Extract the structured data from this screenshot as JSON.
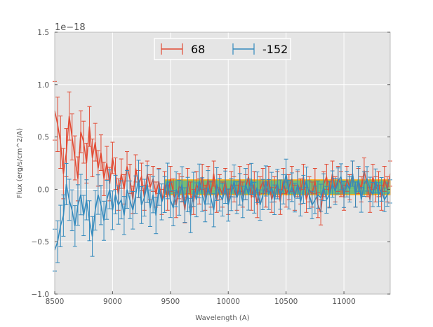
{
  "chart_data": {
    "type": "line",
    "title": "",
    "xlabel": "Wavelength (A)",
    "ylabel": "Flux (erg/s/cm^2/A)",
    "offset_label": "1e−18",
    "xlim": [
      8500,
      11400
    ],
    "ylim": [
      -1.0,
      1.5
    ],
    "x_ticks": [
      8500,
      9000,
      9500,
      10000,
      10500,
      11000
    ],
    "x_tick_labels": [
      "8500",
      "9000",
      "9500",
      "10000",
      "10500",
      "11000"
    ],
    "y_ticks": [
      -1.0,
      -0.5,
      0.0,
      0.5,
      1.0,
      1.5
    ],
    "y_tick_labels": [
      "−1.0",
      "−0.5",
      "0.0",
      "0.5",
      "1.0",
      "1.5"
    ],
    "grid": true,
    "background": "#e5e5e5",
    "legend": {
      "placement": "upper-center",
      "columns": 2
    },
    "band": {
      "x": [
        9450,
        11400
      ],
      "y": [
        -0.05,
        0.09
      ],
      "color": "#4caf50",
      "edge_color": "#ffa500"
    },
    "series": [
      {
        "name": "68",
        "color": "#e24a33",
        "x": [
          8500,
          8525,
          8550,
          8575,
          8600,
          8625,
          8650,
          8675,
          8700,
          8725,
          8750,
          8775,
          8800,
          8825,
          8850,
          8875,
          8900,
          8925,
          8950,
          8975,
          9000,
          9025,
          9050,
          9075,
          9100,
          9125,
          9150,
          9175,
          9200,
          9225,
          9250,
          9275,
          9300,
          9325,
          9350,
          9375,
          9400,
          9425,
          9450,
          9475,
          9500,
          9525,
          9550,
          9575,
          9600,
          9625,
          9650,
          9675,
          9700,
          9725,
          9750,
          9775,
          9800,
          9825,
          9850,
          9875,
          9900,
          9925,
          9950,
          9975,
          10000,
          10025,
          10050,
          10075,
          10100,
          10125,
          10150,
          10175,
          10200,
          10225,
          10250,
          10275,
          10300,
          10325,
          10350,
          10375,
          10400,
          10425,
          10450,
          10475,
          10500,
          10525,
          10550,
          10575,
          10600,
          10625,
          10650,
          10675,
          10700,
          10725,
          10750,
          10775,
          10800,
          10825,
          10850,
          10875,
          10900,
          10925,
          10950,
          10975,
          11000,
          11025,
          11050,
          11075,
          11100,
          11125,
          11150,
          11175,
          11200,
          11225,
          11250,
          11275,
          11300,
          11325,
          11350,
          11375,
          11400
        ],
        "y": [
          0.75,
          0.62,
          0.45,
          0.15,
          0.35,
          0.7,
          0.5,
          0.3,
          0.1,
          0.55,
          0.45,
          0.25,
          0.6,
          0.3,
          0.45,
          0.2,
          0.35,
          0.1,
          0.25,
          0.05,
          0.3,
          0.15,
          -0.05,
          0.15,
          0.0,
          0.22,
          0.1,
          -0.1,
          0.2,
          0.05,
          0.12,
          -0.08,
          0.15,
          0.02,
          0.1,
          -0.05,
          0.08,
          -0.12,
          0.05,
          -0.08,
          0.1,
          -0.02,
          -0.15,
          0.03,
          0.0,
          -0.2,
          0.08,
          -0.05,
          -0.12,
          0.05,
          -0.02,
          0.12,
          -0.08,
          0.1,
          -0.05,
          0.15,
          -0.1,
          0.02,
          -0.05,
          0.08,
          -0.12,
          0.05,
          0.0,
          -0.08,
          0.1,
          -0.05,
          0.02,
          0.12,
          -0.08,
          0.05,
          -0.15,
          0.0,
          0.08,
          -0.05,
          0.1,
          -0.1,
          0.0,
          0.05,
          -0.12,
          0.08,
          -0.05,
          0.02,
          0.1,
          -0.08,
          0.05,
          -0.02,
          0.12,
          -0.1,
          0.0,
          -0.05,
          0.08,
          -0.15,
          -0.22,
          0.05,
          0.12,
          -0.05,
          0.15,
          0.0,
          0.1,
          0.05,
          -0.08,
          0.1,
          0.02,
          0.15,
          -0.05,
          0.08,
          0.0,
          0.18,
          0.05,
          -0.1,
          0.12,
          0.0,
          0.05,
          -0.08,
          0.1,
          0.0,
          0.15
        ],
        "yerr": [
          0.28,
          0.26,
          0.25,
          0.24,
          0.23,
          0.23,
          0.22,
          0.21,
          0.21,
          0.2,
          0.2,
          0.19,
          0.19,
          0.18,
          0.18,
          0.17,
          0.17,
          0.16,
          0.16,
          0.16,
          0.15,
          0.15,
          0.15,
          0.14,
          0.14,
          0.14,
          0.14,
          0.13,
          0.13,
          0.13,
          0.13,
          0.12,
          0.12,
          0.12,
          0.12,
          0.12,
          0.12,
          0.12,
          0.12,
          0.12,
          0.12,
          0.12,
          0.12,
          0.12,
          0.12,
          0.12,
          0.12,
          0.12,
          0.12,
          0.12,
          0.12,
          0.12,
          0.12,
          0.12,
          0.12,
          0.12,
          0.12,
          0.12,
          0.12,
          0.12,
          0.12,
          0.12,
          0.12,
          0.12,
          0.12,
          0.12,
          0.12,
          0.12,
          0.12,
          0.12,
          0.12,
          0.12,
          0.12,
          0.12,
          0.12,
          0.12,
          0.12,
          0.12,
          0.12,
          0.12,
          0.12,
          0.12,
          0.12,
          0.12,
          0.12,
          0.12,
          0.12,
          0.12,
          0.12,
          0.12,
          0.12,
          0.12,
          0.12,
          0.12,
          0.12,
          0.12,
          0.12,
          0.12,
          0.12,
          0.12,
          0.12,
          0.12,
          0.12,
          0.12,
          0.12,
          0.12,
          0.12,
          0.12,
          0.12,
          0.12,
          0.12,
          0.12,
          0.12,
          0.12,
          0.12,
          0.12,
          0.12
        ]
      },
      {
        "name": "-152",
        "color": "#348abd",
        "x": [
          8500,
          8525,
          8550,
          8575,
          8600,
          8625,
          8650,
          8675,
          8700,
          8725,
          8750,
          8775,
          8800,
          8825,
          8850,
          8875,
          8900,
          8925,
          8950,
          8975,
          9000,
          9025,
          9050,
          9075,
          9100,
          9125,
          9150,
          9175,
          9200,
          9225,
          9250,
          9275,
          9300,
          9325,
          9350,
          9375,
          9400,
          9425,
          9450,
          9475,
          9500,
          9525,
          9550,
          9575,
          9600,
          9625,
          9650,
          9675,
          9700,
          9725,
          9750,
          9775,
          9800,
          9825,
          9850,
          9875,
          9900,
          9925,
          9950,
          9975,
          10000,
          10025,
          10050,
          10075,
          10100,
          10125,
          10150,
          10175,
          10200,
          10225,
          10250,
          10275,
          10300,
          10325,
          10350,
          10375,
          10400,
          10425,
          10450,
          10475,
          10500,
          10525,
          10550,
          10575,
          10600,
          10625,
          10650,
          10675,
          10700,
          10725,
          10750,
          10775,
          10800,
          10825,
          10850,
          10875,
          10900,
          10925,
          10950,
          10975,
          11000,
          11025,
          11050,
          11075,
          11100,
          11125,
          11150,
          11175,
          11200,
          11225,
          11250,
          11275,
          11300,
          11325,
          11350,
          11375,
          11400
        ],
        "y": [
          -0.58,
          -0.5,
          -0.35,
          -0.25,
          0.05,
          -0.1,
          -0.2,
          -0.35,
          -0.15,
          -0.05,
          -0.25,
          -0.1,
          -0.3,
          -0.45,
          -0.2,
          -0.05,
          -0.15,
          -0.3,
          -0.1,
          0.0,
          -0.2,
          -0.05,
          -0.15,
          -0.1,
          -0.25,
          0.0,
          -0.1,
          -0.2,
          -0.05,
          0.1,
          -0.15,
          -0.08,
          0.05,
          -0.18,
          -0.05,
          -0.25,
          0.02,
          -0.12,
          -0.05,
          0.08,
          -0.1,
          -0.18,
          0.0,
          -0.08,
          0.05,
          -0.15,
          -0.05,
          -0.25,
          0.0,
          -0.1,
          0.08,
          -0.05,
          -0.15,
          0.02,
          -0.08,
          -0.2,
          0.05,
          -0.05,
          -0.1,
          0.02,
          -0.15,
          -0.05,
          0.08,
          -0.08,
          0.0,
          -0.12,
          0.05,
          -0.05,
          0.1,
          -0.08,
          0.02,
          -0.15,
          -0.05,
          0.08,
          -0.05,
          0.02,
          -0.1,
          0.05,
          -0.05,
          0.0,
          0.15,
          -0.05,
          0.02,
          -0.08,
          0.05,
          -0.12,
          0.0,
          0.08,
          -0.05,
          -0.15,
          -0.1,
          -0.05,
          -0.08,
          0.02,
          -0.1,
          -0.05,
          0.05,
          -0.02,
          0.08,
          0.12,
          -0.05,
          0.05,
          0.0,
          0.15,
          -0.05,
          0.1,
          -0.1,
          0.05,
          0.1,
          0.0,
          -0.05,
          0.08,
          -0.05,
          0.0,
          -0.1,
          -0.05,
          -0.02
        ]
      }
    ],
    "series_err_blue_note": ""
  }
}
